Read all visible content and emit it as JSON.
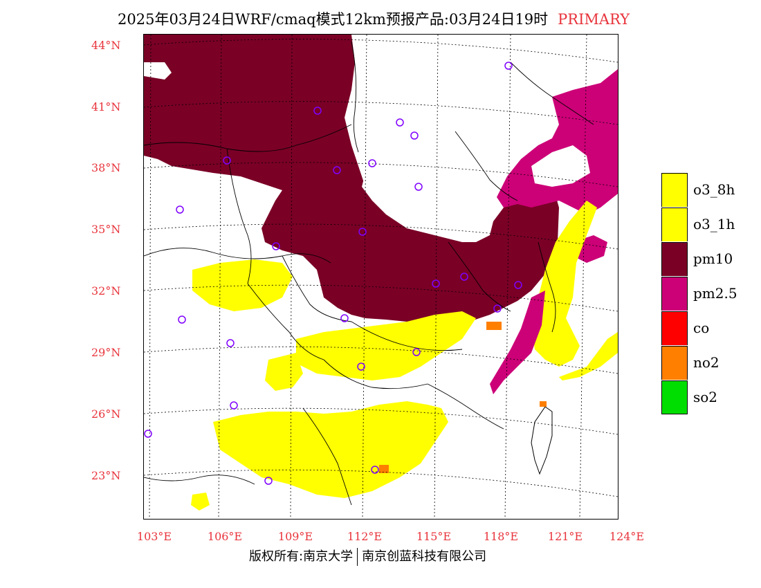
{
  "title": {
    "main": "2025年03月24日WRF/cmaq模式12km预报产品:03月24日19时",
    "tag": "PRIMARY"
  },
  "axes": {
    "lat_labels": [
      "44°N",
      "41°N",
      "38°N",
      "35°N",
      "32°N",
      "29°N",
      "26°N",
      "23°N"
    ],
    "lon_labels": [
      "103°E",
      "106°E",
      "109°E",
      "112°E",
      "115°E",
      "118°E",
      "121°E",
      "124°E"
    ]
  },
  "legend": [
    {
      "label": "o3_8h",
      "color": "#ffff00"
    },
    {
      "label": "o3_1h",
      "color": "#ffff00"
    },
    {
      "label": "pm10",
      "color": "#7a0026"
    },
    {
      "label": "pm2.5",
      "color": "#cc0077"
    },
    {
      "label": "co",
      "color": "#ff0000"
    },
    {
      "label": "no2",
      "color": "#ff7f00"
    },
    {
      "label": "so2",
      "color": "#00dd00"
    }
  ],
  "footer": {
    "left": "版权所有:南京大学",
    "right": "南京创蓝科技有限公司"
  }
}
